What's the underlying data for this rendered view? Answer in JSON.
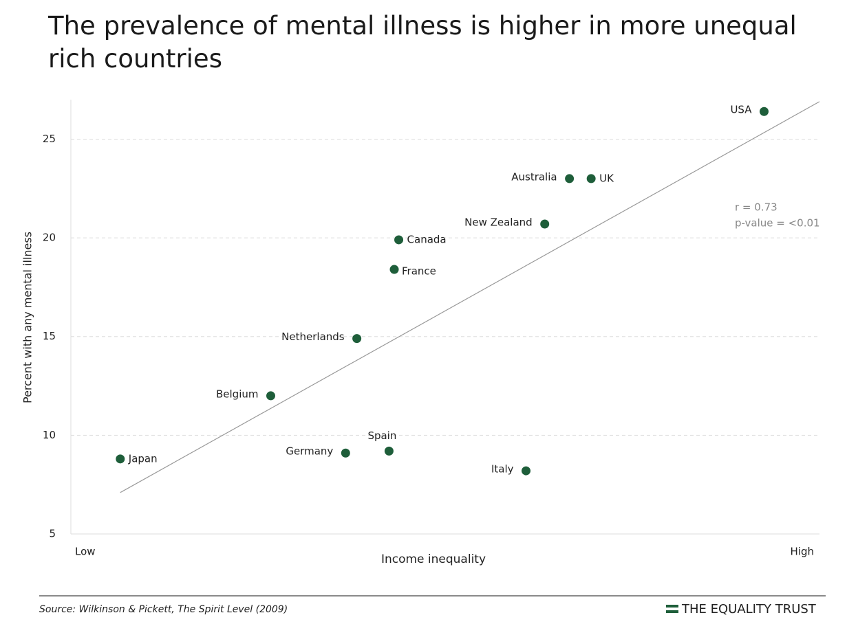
{
  "chart_data": {
    "type": "scatter",
    "title": "The prevalence of mental illness is higher in more unequal rich countries",
    "xlabel": "Income inequality",
    "ylabel": "Percent with any mental illness",
    "categories": [
      "Japan",
      "Belgium",
      "Germany",
      "Spain",
      "Netherlands",
      "France",
      "Canada",
      "Italy",
      "New Zealand",
      "Australia",
      "UK",
      "USA"
    ],
    "x": [
      6.6,
      26.7,
      36.7,
      42.5,
      38.2,
      43.2,
      43.8,
      60.8,
      63.3,
      66.6,
      69.5,
      92.6
    ],
    "values": [
      8.8,
      12.0,
      9.1,
      9.2,
      14.9,
      18.4,
      19.9,
      8.2,
      20.7,
      23.0,
      23.0,
      26.4
    ],
    "color": "#1e5e3a",
    "trend_line": {
      "x": [
        6.6,
        100
      ],
      "y": [
        7.1,
        26.9
      ],
      "color": "#999999"
    },
    "xlim": [
      0,
      100
    ],
    "xticks": [
      {
        "value": 0,
        "label": "Low"
      },
      {
        "value": 100,
        "label": "High"
      }
    ],
    "ylim": [
      5,
      27
    ],
    "yticks": [
      5,
      10,
      15,
      20,
      25
    ],
    "grid": true,
    "annotations": [
      "r = 0.73",
      "p-value = <0.01"
    ],
    "source": "Source: Wilkinson & Pickett, The Spirit Level (2009)",
    "brand": "THE EQUALITY TRUST"
  }
}
